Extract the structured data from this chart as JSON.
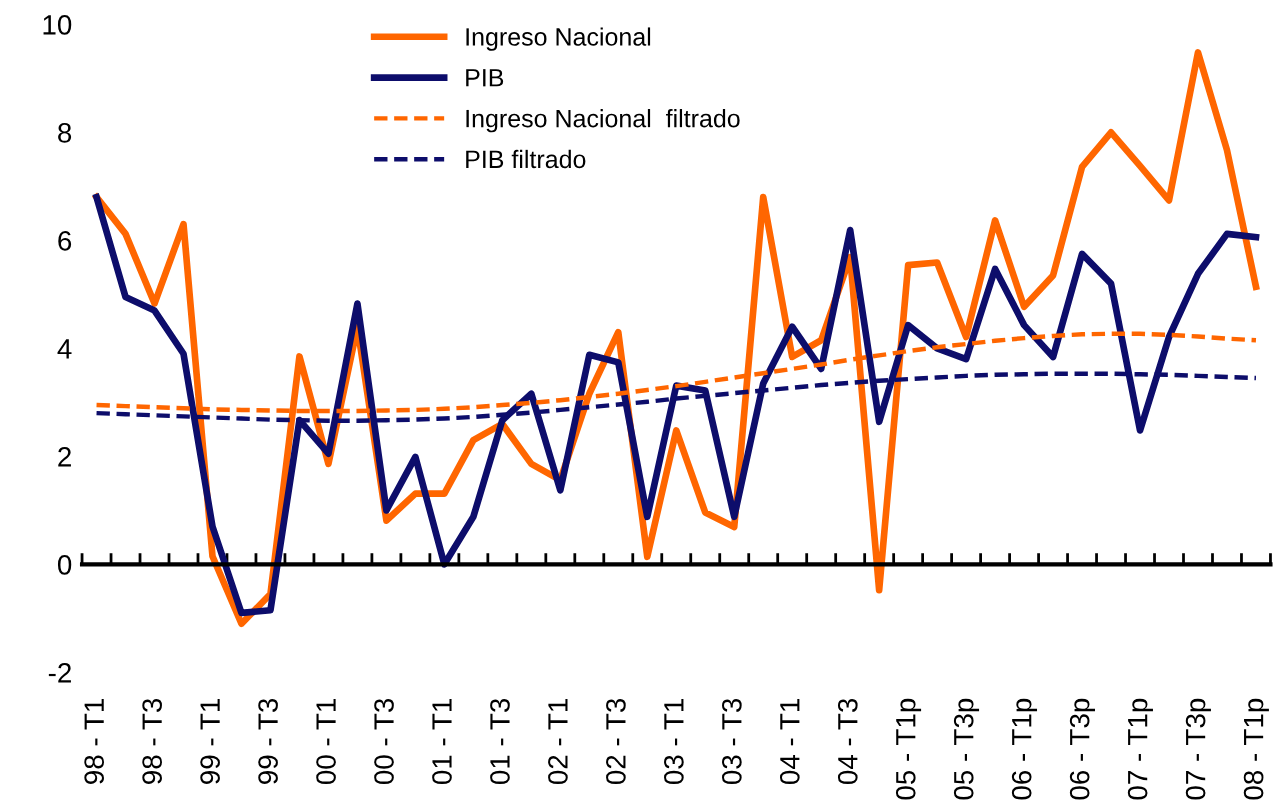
{
  "chart_data": {
    "type": "line",
    "categories": [
      "98 - T1",
      null,
      "98 - T3",
      null,
      "99 - T1",
      null,
      "99 - T3",
      null,
      "00 - T1",
      null,
      "00 - T3",
      null,
      "01 - T1",
      null,
      "01 - T3",
      null,
      "02 - T1",
      null,
      "02 - T3",
      null,
      "03 - T1",
      null,
      "03 - T3",
      null,
      "04 - T1",
      null,
      "04 - T3",
      null,
      "05 - T1p",
      null,
      "05 - T3p",
      null,
      "06 - T1p",
      null,
      "06 - T3p",
      null,
      "07 - T1p",
      null,
      "07 - T3p",
      null,
      "08 - T1p"
    ],
    "series": [
      {
        "name": "Ingreso Nacional",
        "color": "#ff6600",
        "line_style": "solid",
        "values": [
          6.8,
          6.12,
          4.83,
          6.3,
          0.15,
          -1.1,
          -0.55,
          3.85,
          1.86,
          4.4,
          0.81,
          1.31,
          1.31,
          2.3,
          2.6,
          1.86,
          1.56,
          3.16,
          4.3,
          0.14,
          2.48,
          0.96,
          0.69,
          6.8,
          3.84,
          4.15,
          5.69,
          -0.48,
          5.54,
          5.59,
          4.21,
          6.37,
          4.77,
          5.35,
          7.36,
          8.0,
          7.38,
          6.74,
          9.48,
          7.67,
          5.14
        ]
      },
      {
        "name": "PIB",
        "color": "#0d0d6b",
        "line_style": "solid",
        "values": [
          6.8,
          4.95,
          4.7,
          3.9,
          0.7,
          -0.9,
          -0.85,
          2.67,
          2.05,
          4.83,
          1.0,
          1.99,
          0.0,
          0.88,
          2.67,
          3.16,
          1.37,
          3.88,
          3.74,
          0.88,
          3.31,
          3.22,
          0.88,
          3.35,
          4.4,
          3.62,
          6.19,
          2.64,
          4.43,
          4.0,
          3.8,
          5.47,
          4.43,
          3.84,
          5.75,
          5.2,
          2.48,
          4.21,
          5.38,
          6.12,
          6.06
        ]
      },
      {
        "name": "Ingreso Nacional  filtrado",
        "color": "#ff6600",
        "line_style": "dashed",
        "values": [
          2.95,
          2.93,
          2.91,
          2.89,
          2.87,
          2.86,
          2.85,
          2.84,
          2.84,
          2.84,
          2.85,
          2.86,
          2.88,
          2.91,
          2.95,
          2.99,
          3.04,
          3.1,
          3.16,
          3.23,
          3.3,
          3.38,
          3.46,
          3.54,
          3.62,
          3.7,
          3.79,
          3.87,
          3.95,
          4.02,
          4.08,
          4.14,
          4.19,
          4.23,
          4.26,
          4.27,
          4.27,
          4.25,
          4.22,
          4.18,
          4.15
        ]
      },
      {
        "name": "PIB filtrado",
        "color": "#0d0d6b",
        "line_style": "dashed",
        "values": [
          2.8,
          2.78,
          2.76,
          2.74,
          2.72,
          2.7,
          2.68,
          2.67,
          2.66,
          2.66,
          2.67,
          2.68,
          2.7,
          2.73,
          2.77,
          2.81,
          2.86,
          2.91,
          2.96,
          3.01,
          3.07,
          3.12,
          3.17,
          3.22,
          3.27,
          3.32,
          3.36,
          3.4,
          3.43,
          3.46,
          3.49,
          3.51,
          3.52,
          3.53,
          3.53,
          3.53,
          3.52,
          3.51,
          3.49,
          3.47,
          3.45
        ]
      }
    ],
    "ylim": [
      -2,
      10
    ],
    "yticks": [
      -2,
      0,
      2,
      4,
      6,
      8,
      10
    ],
    "legend": "top",
    "marker": "none"
  }
}
